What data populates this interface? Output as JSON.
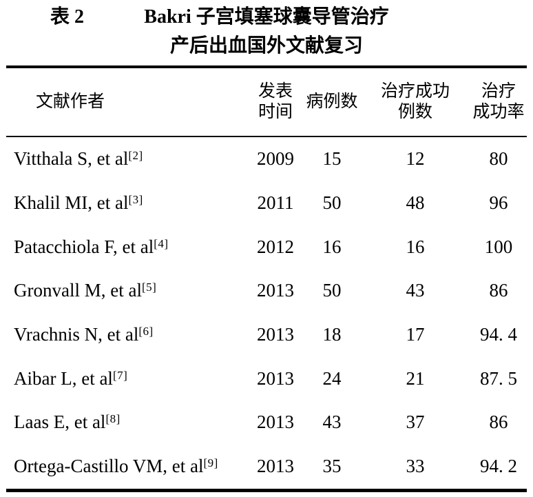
{
  "title": {
    "label": "表 2",
    "line1": "Bakri 子宫填塞球囊导管治疗",
    "line2": "产后出血国外文献复习"
  },
  "table": {
    "columns": [
      {
        "key": "author",
        "lines": [
          "文献作者"
        ]
      },
      {
        "key": "year",
        "lines": [
          "发表",
          "时间"
        ]
      },
      {
        "key": "cases",
        "lines": [
          "病例数"
        ]
      },
      {
        "key": "success_cases",
        "lines": [
          "治疗成功",
          "例数"
        ]
      },
      {
        "key": "success_rate",
        "lines": [
          "治疗",
          "成功率"
        ]
      }
    ],
    "rows": [
      {
        "author": "Vitthala S, et al",
        "ref": "[2]",
        "year": "2009",
        "cases": "15",
        "success_cases": "12",
        "success_rate": "80"
      },
      {
        "author": "Khalil MI, et al",
        "ref": "[3]",
        "year": "2011",
        "cases": "50",
        "success_cases": "48",
        "success_rate": "96"
      },
      {
        "author": "Patacchiola F, et al",
        "ref": "[4]",
        "year": "2012",
        "cases": "16",
        "success_cases": "16",
        "success_rate": "100"
      },
      {
        "author": "Gronvall M, et al",
        "ref": "[5]",
        "year": "2013",
        "cases": "50",
        "success_cases": "43",
        "success_rate": "86"
      },
      {
        "author": "Vrachnis N, et al",
        "ref": "[6]",
        "year": "2013",
        "cases": "18",
        "success_cases": "17",
        "success_rate": "94. 4"
      },
      {
        "author": "Aibar L, et al",
        "ref": "[7]",
        "year": "2013",
        "cases": "24",
        "success_cases": "21",
        "success_rate": "87. 5"
      },
      {
        "author": "Laas E, et al",
        "ref": "[8]",
        "year": "2013",
        "cases": "43",
        "success_cases": "37",
        "success_rate": "86"
      },
      {
        "author": "Ortega-Castillo VM, et al",
        "ref": "[9]",
        "year": "2013",
        "cases": "35",
        "success_cases": "33",
        "success_rate": "94. 2"
      }
    ]
  }
}
